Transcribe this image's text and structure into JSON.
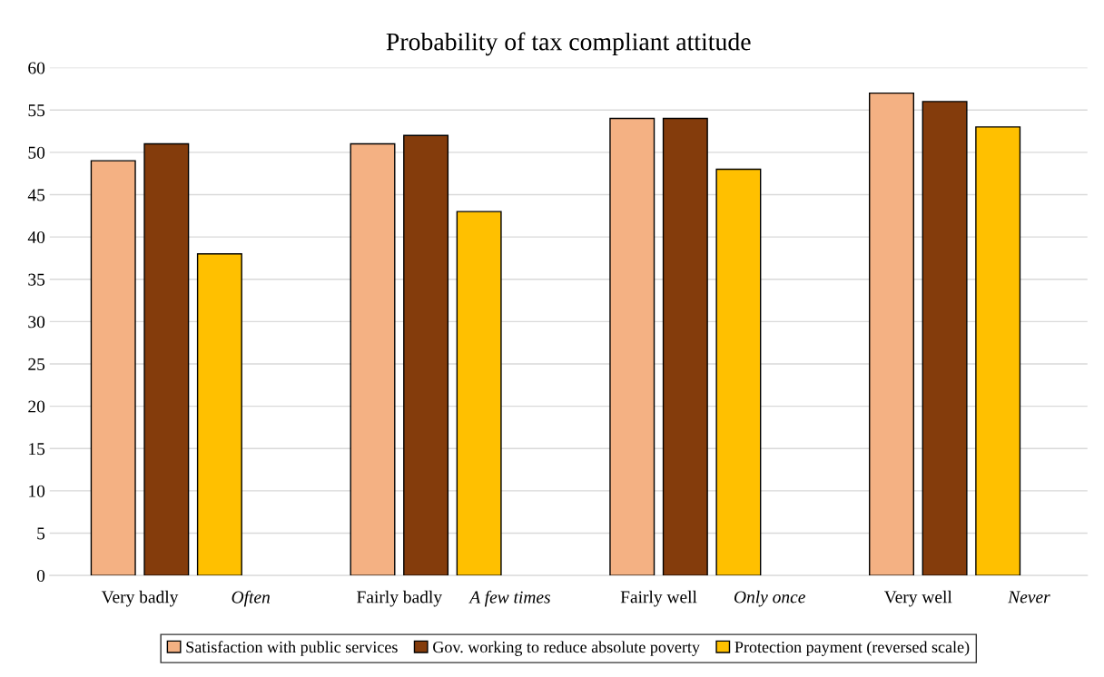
{
  "chart_data": {
    "type": "bar",
    "title": "Probability of tax compliant attitude",
    "categories": [
      "Very badly",
      "Fairly badly",
      "Fairly well",
      "Very well"
    ],
    "series": [
      {
        "name": "Satisfaction with public services",
        "color": "#f4b183",
        "values": [
          49,
          51,
          54,
          57
        ]
      },
      {
        "name": "Gov. working to reduce absolute poverty",
        "color": "#843c0c",
        "values": [
          51,
          52,
          54,
          56
        ]
      },
      {
        "name": "Protection payment (reversed scale)",
        "color": "#ffc000",
        "values": [
          38,
          43,
          48,
          53
        ]
      }
    ],
    "annotations": [
      "Often",
      "A few times",
      "Only once",
      "Never"
    ],
    "ylim": [
      0,
      60
    ],
    "yticks": [
      0,
      5,
      10,
      15,
      20,
      25,
      30,
      35,
      40,
      45,
      50,
      55,
      60
    ],
    "grid": "y",
    "legend": "bottom"
  }
}
